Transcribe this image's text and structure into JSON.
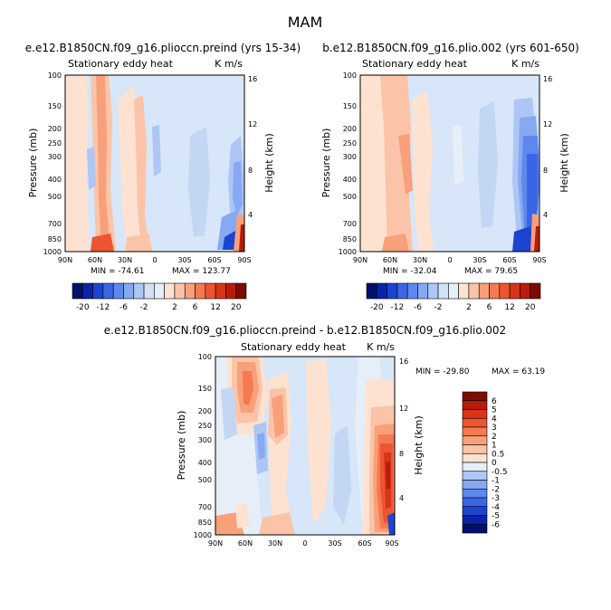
{
  "page_title": "MAM",
  "chart_data": [
    {
      "type": "heatmap",
      "title": "e.e12.B1850CN.f09_g16.plioccn.preind (yrs 15-34)",
      "subtitle_left": "Stationary eddy heat",
      "subtitle_right": "K m/s",
      "ylabel": "Pressure (mb)",
      "ylabel_right": "Height (km)",
      "x_ticks": [
        "90N",
        "60N",
        "30N",
        "0",
        "30S",
        "60S",
        "90S"
      ],
      "y_ticks": [
        "100",
        "150",
        "200",
        "250",
        "300",
        "400",
        "500",
        "700",
        "850",
        "1000"
      ],
      "y2_ticks": [
        "16",
        "12",
        "8",
        "4"
      ],
      "min_text": "MIN = -74.61",
      "max_text": "MAX = 123.77",
      "colorbar": {
        "orientation": "horizontal",
        "tick_labels": [
          "-20",
          "-12",
          "-6",
          "-2",
          "2",
          "6",
          "12",
          "20"
        ],
        "levels": [
          -20,
          -16,
          -12,
          -8,
          -6,
          -4,
          -2,
          -1,
          1,
          2,
          4,
          6,
          8,
          12,
          16,
          20
        ]
      }
    },
    {
      "type": "heatmap",
      "title": "b.e12.B1850CN.f09_g16.plio.002 (yrs 601-650)",
      "subtitle_left": "Stationary eddy heat",
      "subtitle_right": "K m/s",
      "ylabel": "Pressure (mb)",
      "ylabel_right": "Height (km)",
      "x_ticks": [
        "90N",
        "60N",
        "30N",
        "0",
        "30S",
        "60S",
        "90S"
      ],
      "y_ticks": [
        "100",
        "150",
        "200",
        "250",
        "300",
        "400",
        "500",
        "700",
        "850",
        "1000"
      ],
      "y2_ticks": [
        "16",
        "12",
        "8",
        "4"
      ],
      "min_text": "MIN = -32.04",
      "max_text": "MAX = 79.65",
      "colorbar": {
        "orientation": "horizontal",
        "tick_labels": [
          "-20",
          "-12",
          "-6",
          "-2",
          "2",
          "6",
          "12",
          "20"
        ],
        "levels": [
          -20,
          -16,
          -12,
          -8,
          -6,
          -4,
          -2,
          -1,
          1,
          2,
          4,
          6,
          8,
          12,
          16,
          20
        ]
      }
    },
    {
      "type": "heatmap",
      "title": "e.e12.B1850CN.f09_g16.plioccn.preind - b.e12.B1850CN.f09_g16.plio.002",
      "subtitle_left": "Stationary eddy heat",
      "subtitle_right": "K m/s",
      "ylabel": "Pressure (mb)",
      "ylabel_right": "Height (km)",
      "x_ticks": [
        "90N",
        "60N",
        "30N",
        "0",
        "30S",
        "60S",
        "90S"
      ],
      "y_ticks": [
        "100",
        "150",
        "200",
        "250",
        "300",
        "400",
        "500",
        "700",
        "850",
        "1000"
      ],
      "y2_ticks": [
        "16",
        "12",
        "8",
        "4"
      ],
      "min_text": "MIN = -29.80",
      "max_text": "MAX =  63.19",
      "colorbar": {
        "orientation": "vertical",
        "tick_labels": [
          "6",
          "5",
          "4",
          "3",
          "2",
          "1",
          "0.5",
          "0",
          "-0.5",
          "-1",
          "-2",
          "-3",
          "-4",
          "-5",
          "-6"
        ],
        "levels": [
          -6,
          -5,
          -4,
          -3,
          -2,
          -1,
          -0.5,
          0,
          0.5,
          1,
          2,
          3,
          4,
          5,
          6
        ]
      }
    }
  ],
  "colors": {
    "blue_ramp": [
      "#00106c",
      "#0824a8",
      "#1c44d0",
      "#3a66e6",
      "#5e88ee",
      "#86a9f2",
      "#adc6f5",
      "#d2e1f8"
    ],
    "neutral": "#e6eef7",
    "red_ramp": [
      "#fde2d2",
      "#fbc4a8",
      "#f8a07a",
      "#f47a52",
      "#ec5530",
      "#d83518",
      "#b81c0a",
      "#7c0c04"
    ],
    "background_field": "#d7e6f8"
  }
}
